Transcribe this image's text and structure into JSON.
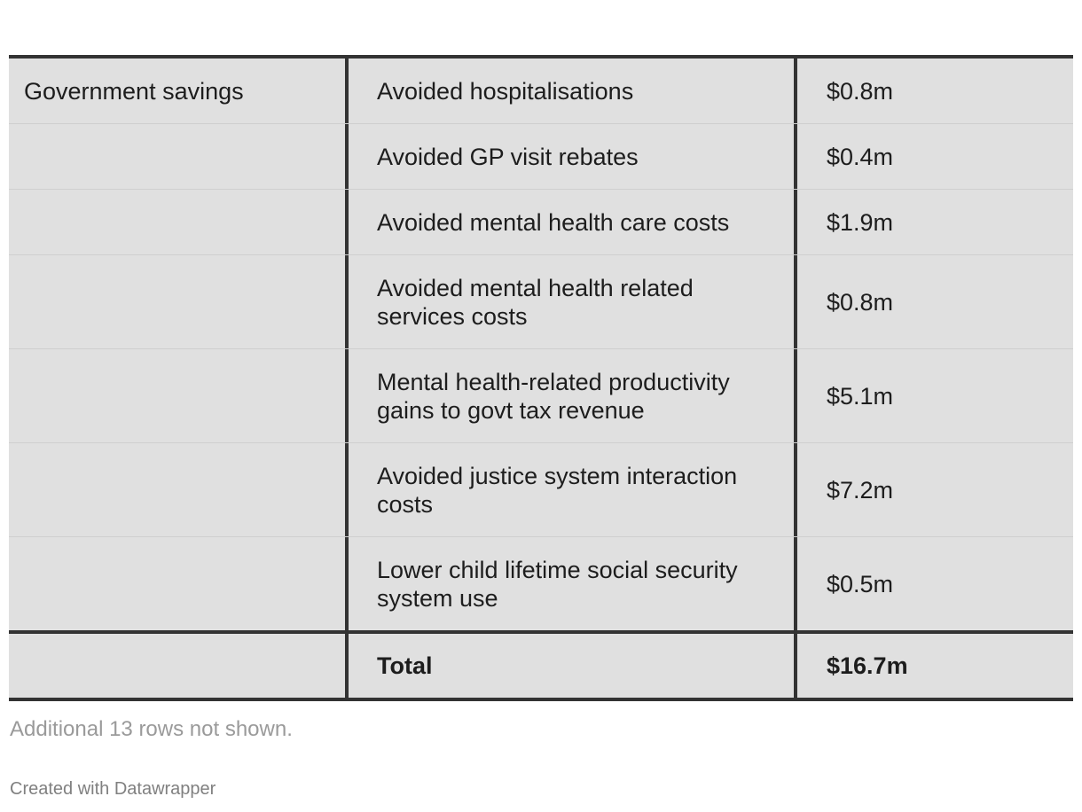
{
  "table": {
    "rows": [
      {
        "category": "Government savings",
        "item": "Avoided hospitalisations",
        "value": "$0.8m"
      },
      {
        "category": "",
        "item": "Avoided GP visit rebates",
        "value": "$0.4m"
      },
      {
        "category": "",
        "item": "Avoided mental health care costs",
        "value": "$1.9m"
      },
      {
        "category": "",
        "item": "Avoided mental health related services costs",
        "value": "$0.8m"
      },
      {
        "category": "",
        "item": "Mental health-related productivity gains to govt tax revenue",
        "value": "$5.1m"
      },
      {
        "category": "",
        "item": "Avoided justice system interaction costs",
        "value": "$7.2m"
      },
      {
        "category": "",
        "item": "Lower child lifetime social security system use",
        "value": "$0.5m"
      }
    ],
    "total": {
      "category": "",
      "label": "Total",
      "value": "$16.7m"
    }
  },
  "footer": {
    "note": "Additional 13 rows not shown.",
    "credit": "Created with Datawrapper"
  }
}
